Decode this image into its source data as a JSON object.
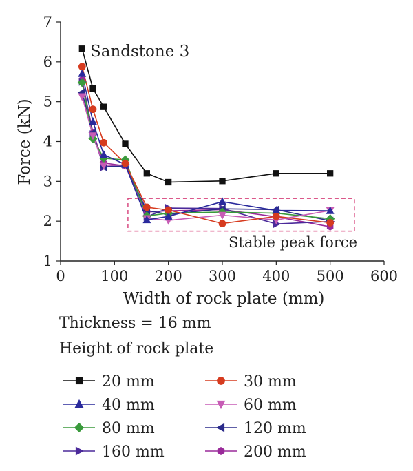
{
  "chart_data": {
    "type": "line",
    "title": "",
    "xlabel": "Width of rock plate (mm)",
    "ylabel": "Force (kN)",
    "xlim": [
      0,
      600
    ],
    "ylim": [
      1,
      7
    ],
    "xticks": [
      0,
      100,
      200,
      300,
      400,
      500,
      600
    ],
    "yticks": [
      1,
      2,
      3,
      4,
      5,
      6,
      7
    ],
    "grid": false,
    "annotations": {
      "sample": "Sandstone 3",
      "region": "Stable peak force",
      "region_x": [
        125,
        545
      ],
      "region_y": [
        1.75,
        2.57
      ]
    },
    "legend": {
      "placement": "bottom",
      "header1": "Thickness = 16 mm",
      "header2": "Height of rock plate"
    },
    "x": [
      40,
      60,
      80,
      120,
      160,
      200,
      300,
      400,
      500
    ],
    "series": [
      {
        "name": "20 mm",
        "color": "#111111",
        "marker": "square",
        "values": [
          6.33,
          5.33,
          4.87,
          3.94,
          3.2,
          2.98,
          3.01,
          3.2,
          3.2
        ]
      },
      {
        "name": "30 mm",
        "color": "#d63b1f",
        "marker": "circle",
        "values": [
          5.88,
          4.81,
          3.97,
          3.45,
          2.35,
          2.28,
          1.94,
          2.12,
          1.96
        ]
      },
      {
        "name": "40 mm",
        "color": "#2a2a9c",
        "marker": "triangle-up",
        "values": [
          5.7,
          4.5,
          3.67,
          3.42,
          2.03,
          2.12,
          2.49,
          2.27,
          2.26
        ]
      },
      {
        "name": "60 mm",
        "color": "#c75cb5",
        "marker": "triangle-down",
        "values": [
          5.13,
          4.15,
          3.4,
          3.41,
          2.07,
          2.02,
          2.15,
          2.03,
          2.27
        ]
      },
      {
        "name": "80 mm",
        "color": "#3a9a3c",
        "marker": "diamond",
        "values": [
          5.48,
          4.07,
          3.58,
          3.54,
          2.13,
          2.2,
          2.23,
          2.2,
          2.06
        ]
      },
      {
        "name": "120 mm",
        "color": "#2a2a8a",
        "marker": "triangle-left",
        "values": [
          5.23,
          4.22,
          3.36,
          3.39,
          2.27,
          2.17,
          2.31,
          2.29,
          2.01
        ]
      },
      {
        "name": "160 mm",
        "color": "#4b2a9a",
        "marker": "triangle-right",
        "values": [
          5.5,
          4.18,
          3.36,
          3.42,
          2.11,
          2.33,
          2.32,
          1.93,
          1.99
        ]
      },
      {
        "name": "200 mm",
        "color": "#9a2a9a",
        "marker": "hexagon",
        "values": [
          5.55,
          4.22,
          3.46,
          3.39,
          2.23,
          2.26,
          2.29,
          2.11,
          1.86
        ]
      }
    ]
  }
}
